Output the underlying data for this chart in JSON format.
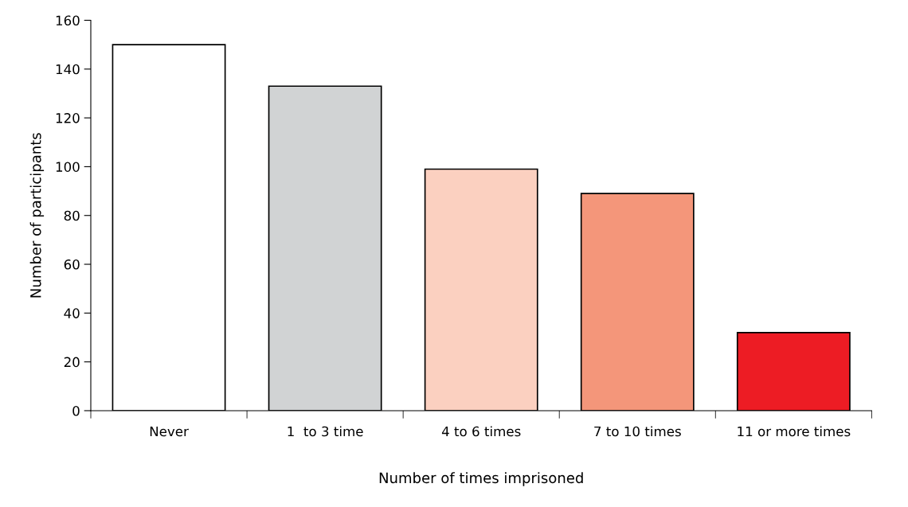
{
  "chart_data": {
    "type": "bar",
    "xlabel": "Number of times imprisoned",
    "ylabel": "Number of participants",
    "categories": [
      "Never",
      "1  to 3 time",
      "4 to 6 times",
      "7 to 10 times",
      "11 or more times"
    ],
    "values": [
      150,
      133,
      99,
      89,
      32
    ],
    "colors": [
      "#ffffff",
      "#d1d3d4",
      "#fbd0c0",
      "#f4967a",
      "#ed1c24"
    ],
    "ylim": [
      0,
      160
    ],
    "yticks": [
      0,
      20,
      40,
      60,
      80,
      100,
      120,
      140,
      160
    ],
    "grid": false,
    "legend": false
  }
}
